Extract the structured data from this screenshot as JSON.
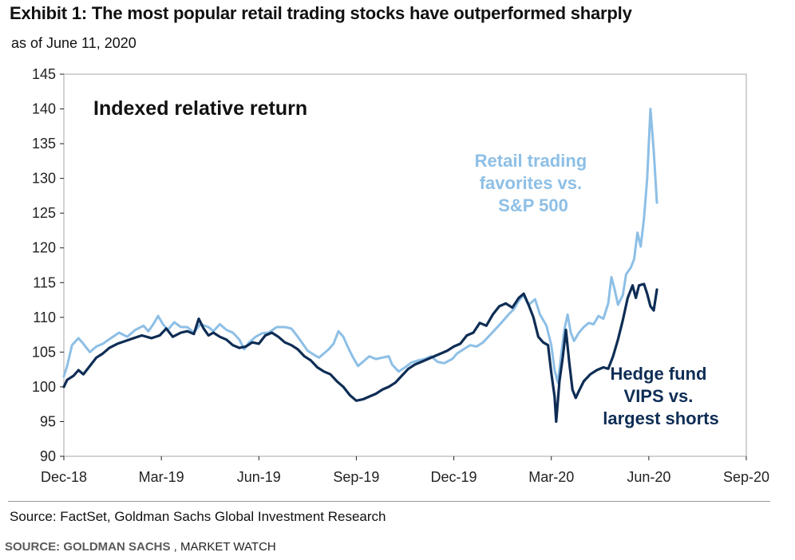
{
  "header": {
    "title": "Exhibit 1: The most popular retail trading stocks have outperformed sharply",
    "subtitle": "as of June 11, 2020"
  },
  "footer": {
    "source": "Source: FactSet, Goldman Sachs Global Investment Research",
    "credit_label": "SOURCE: GOLDMAN SACHS",
    "credit_sep": " , ",
    "credit_outlet": "MARKET WATCH"
  },
  "colors": {
    "retail": "#8dbfe6",
    "hedge": "#0e2d55",
    "axis": "#222222",
    "frame": "#b3b3b3"
  },
  "chart_data": {
    "type": "line",
    "title": "Indexed relative return",
    "xlabel": "",
    "ylabel": "",
    "ylim": [
      90,
      145
    ],
    "xlim": [
      0,
      21
    ],
    "x_unit": "months since Dec-18",
    "yticks": [
      90,
      95,
      100,
      105,
      110,
      115,
      120,
      125,
      130,
      135,
      140,
      145
    ],
    "xticks": [
      {
        "value": 0,
        "label": "Dec-18"
      },
      {
        "value": 3,
        "label": "Mar-19"
      },
      {
        "value": 6,
        "label": "Jun-19"
      },
      {
        "value": 9,
        "label": "Sep-19"
      },
      {
        "value": 12,
        "label": "Dec-19"
      },
      {
        "value": 15,
        "label": "Mar-20"
      },
      {
        "value": 18,
        "label": "Jun-20"
      },
      {
        "value": 21,
        "label": "Sep-20"
      }
    ],
    "series": [
      {
        "name": "Retail trading favorites vs. S&P 500",
        "label_lines": [
          "Retail trading",
          "favorites vs.",
          "S&P 500"
        ],
        "color": "#8dbfe6",
        "points": [
          [
            0.0,
            101.5
          ],
          [
            0.1,
            103.0
          ],
          [
            0.25,
            106.0
          ],
          [
            0.45,
            107.0
          ],
          [
            0.6,
            106.2
          ],
          [
            0.8,
            105.0
          ],
          [
            1.0,
            105.8
          ],
          [
            1.2,
            106.2
          ],
          [
            1.45,
            107.0
          ],
          [
            1.7,
            107.8
          ],
          [
            1.95,
            107.2
          ],
          [
            2.2,
            108.2
          ],
          [
            2.45,
            108.8
          ],
          [
            2.6,
            108.0
          ],
          [
            2.75,
            109.0
          ],
          [
            2.9,
            110.2
          ],
          [
            3.05,
            109.0
          ],
          [
            3.2,
            108.2
          ],
          [
            3.4,
            109.3
          ],
          [
            3.6,
            108.6
          ],
          [
            3.8,
            108.6
          ],
          [
            4.0,
            107.8
          ],
          [
            4.2,
            109.0
          ],
          [
            4.45,
            108.6
          ],
          [
            4.6,
            108.0
          ],
          [
            4.8,
            109.0
          ],
          [
            5.0,
            108.2
          ],
          [
            5.2,
            107.8
          ],
          [
            5.4,
            106.8
          ],
          [
            5.55,
            105.4
          ],
          [
            5.7,
            106.4
          ],
          [
            5.9,
            107.2
          ],
          [
            6.1,
            107.7
          ],
          [
            6.3,
            107.8
          ],
          [
            6.55,
            108.6
          ],
          [
            6.8,
            108.6
          ],
          [
            7.0,
            108.4
          ],
          [
            7.2,
            107.2
          ],
          [
            7.35,
            106.2
          ],
          [
            7.5,
            105.2
          ],
          [
            7.7,
            104.6
          ],
          [
            7.85,
            104.2
          ],
          [
            8.0,
            104.8
          ],
          [
            8.15,
            105.4
          ],
          [
            8.3,
            106.2
          ],
          [
            8.45,
            108.0
          ],
          [
            8.6,
            107.2
          ],
          [
            8.75,
            105.6
          ],
          [
            8.9,
            104.2
          ],
          [
            9.05,
            103.0
          ],
          [
            9.2,
            103.6
          ],
          [
            9.4,
            104.4
          ],
          [
            9.6,
            104.0
          ],
          [
            9.8,
            104.2
          ],
          [
            10.0,
            104.4
          ],
          [
            10.1,
            103.2
          ],
          [
            10.3,
            102.2
          ],
          [
            10.5,
            102.8
          ],
          [
            10.7,
            103.5
          ],
          [
            10.9,
            103.8
          ],
          [
            11.1,
            104.0
          ],
          [
            11.3,
            104.4
          ],
          [
            11.5,
            103.6
          ],
          [
            11.7,
            103.4
          ],
          [
            11.95,
            104.0
          ],
          [
            12.1,
            104.8
          ],
          [
            12.3,
            105.4
          ],
          [
            12.5,
            106.0
          ],
          [
            12.7,
            105.8
          ],
          [
            12.9,
            106.4
          ],
          [
            13.1,
            107.4
          ],
          [
            13.3,
            108.4
          ],
          [
            13.5,
            109.4
          ],
          [
            13.7,
            110.5
          ],
          [
            13.85,
            111.2
          ],
          [
            14.0,
            112.4
          ],
          [
            14.15,
            113.2
          ],
          [
            14.3,
            111.8
          ],
          [
            14.5,
            112.6
          ],
          [
            14.65,
            110.4
          ],
          [
            14.85,
            108.8
          ],
          [
            15.0,
            106.0
          ],
          [
            15.1,
            102.4
          ],
          [
            15.2,
            100.6
          ],
          [
            15.3,
            104.4
          ],
          [
            15.4,
            108.2
          ],
          [
            15.5,
            110.4
          ],
          [
            15.6,
            107.8
          ],
          [
            15.7,
            106.6
          ],
          [
            15.85,
            107.8
          ],
          [
            16.0,
            108.6
          ],
          [
            16.15,
            109.2
          ],
          [
            16.3,
            109.0
          ],
          [
            16.45,
            110.2
          ],
          [
            16.6,
            109.8
          ],
          [
            16.75,
            112.0
          ],
          [
            16.85,
            115.8
          ],
          [
            16.95,
            114.0
          ],
          [
            17.05,
            111.8
          ],
          [
            17.2,
            113.2
          ],
          [
            17.3,
            116.2
          ],
          [
            17.45,
            117.2
          ],
          [
            17.55,
            118.4
          ],
          [
            17.65,
            122.2
          ],
          [
            17.75,
            120.2
          ],
          [
            17.85,
            124.2
          ],
          [
            17.95,
            130.0
          ],
          [
            18.05,
            140.0
          ],
          [
            18.15,
            134.0
          ],
          [
            18.25,
            126.5
          ]
        ]
      },
      {
        "name": "Hedge fund VIPS vs. largest shorts",
        "label_lines": [
          "Hedge fund",
          "VIPS vs.",
          "largest shorts"
        ],
        "color": "#0e2d55",
        "points": [
          [
            0.0,
            100.0
          ],
          [
            0.1,
            101.0
          ],
          [
            0.3,
            101.6
          ],
          [
            0.45,
            102.4
          ],
          [
            0.6,
            101.8
          ],
          [
            0.8,
            103.0
          ],
          [
            1.0,
            104.2
          ],
          [
            1.2,
            104.8
          ],
          [
            1.4,
            105.6
          ],
          [
            1.65,
            106.2
          ],
          [
            1.9,
            106.6
          ],
          [
            2.15,
            107.0
          ],
          [
            2.4,
            107.4
          ],
          [
            2.7,
            107.0
          ],
          [
            2.95,
            107.4
          ],
          [
            3.15,
            108.4
          ],
          [
            3.35,
            107.2
          ],
          [
            3.6,
            107.8
          ],
          [
            3.8,
            108.0
          ],
          [
            4.0,
            107.6
          ],
          [
            4.15,
            109.8
          ],
          [
            4.3,
            108.4
          ],
          [
            4.45,
            107.4
          ],
          [
            4.6,
            107.8
          ],
          [
            4.8,
            107.2
          ],
          [
            5.0,
            106.8
          ],
          [
            5.2,
            106.0
          ],
          [
            5.4,
            105.6
          ],
          [
            5.6,
            105.8
          ],
          [
            5.8,
            106.4
          ],
          [
            6.0,
            106.2
          ],
          [
            6.2,
            107.4
          ],
          [
            6.4,
            107.8
          ],
          [
            6.6,
            107.2
          ],
          [
            6.8,
            106.4
          ],
          [
            7.0,
            106.0
          ],
          [
            7.2,
            105.4
          ],
          [
            7.4,
            104.4
          ],
          [
            7.6,
            103.8
          ],
          [
            7.8,
            102.8
          ],
          [
            8.0,
            102.2
          ],
          [
            8.2,
            101.8
          ],
          [
            8.4,
            100.8
          ],
          [
            8.6,
            100.0
          ],
          [
            8.8,
            98.8
          ],
          [
            9.0,
            98.0
          ],
          [
            9.2,
            98.2
          ],
          [
            9.4,
            98.6
          ],
          [
            9.6,
            99.0
          ],
          [
            9.8,
            99.6
          ],
          [
            10.0,
            100.0
          ],
          [
            10.2,
            100.6
          ],
          [
            10.4,
            101.6
          ],
          [
            10.6,
            102.6
          ],
          [
            10.8,
            103.2
          ],
          [
            11.0,
            103.6
          ],
          [
            11.2,
            104.0
          ],
          [
            11.4,
            104.4
          ],
          [
            11.6,
            104.8
          ],
          [
            11.8,
            105.2
          ],
          [
            12.0,
            105.8
          ],
          [
            12.2,
            106.2
          ],
          [
            12.4,
            107.4
          ],
          [
            12.6,
            107.8
          ],
          [
            12.8,
            109.2
          ],
          [
            13.0,
            108.8
          ],
          [
            13.2,
            110.4
          ],
          [
            13.4,
            111.6
          ],
          [
            13.6,
            112.0
          ],
          [
            13.8,
            111.4
          ],
          [
            14.0,
            112.8
          ],
          [
            14.15,
            113.4
          ],
          [
            14.3,
            111.8
          ],
          [
            14.45,
            110.0
          ],
          [
            14.6,
            107.2
          ],
          [
            14.75,
            106.4
          ],
          [
            14.9,
            106.0
          ],
          [
            15.0,
            102.0
          ],
          [
            15.1,
            98.6
          ],
          [
            15.15,
            95.0
          ],
          [
            15.25,
            100.8
          ],
          [
            15.35,
            104.2
          ],
          [
            15.45,
            108.2
          ],
          [
            15.55,
            103.6
          ],
          [
            15.65,
            99.6
          ],
          [
            15.75,
            98.4
          ],
          [
            15.85,
            99.4
          ],
          [
            16.0,
            100.8
          ],
          [
            16.2,
            101.8
          ],
          [
            16.4,
            102.4
          ],
          [
            16.6,
            102.8
          ],
          [
            16.75,
            102.6
          ],
          [
            16.9,
            104.4
          ],
          [
            17.05,
            106.8
          ],
          [
            17.2,
            109.6
          ],
          [
            17.35,
            112.8
          ],
          [
            17.5,
            114.6
          ],
          [
            17.6,
            112.8
          ],
          [
            17.7,
            114.6
          ],
          [
            17.85,
            114.8
          ],
          [
            17.95,
            113.4
          ],
          [
            18.05,
            111.6
          ],
          [
            18.15,
            111.0
          ],
          [
            18.25,
            114.0
          ]
        ]
      }
    ],
    "annotations": [
      "Indexed relative return"
    ]
  }
}
